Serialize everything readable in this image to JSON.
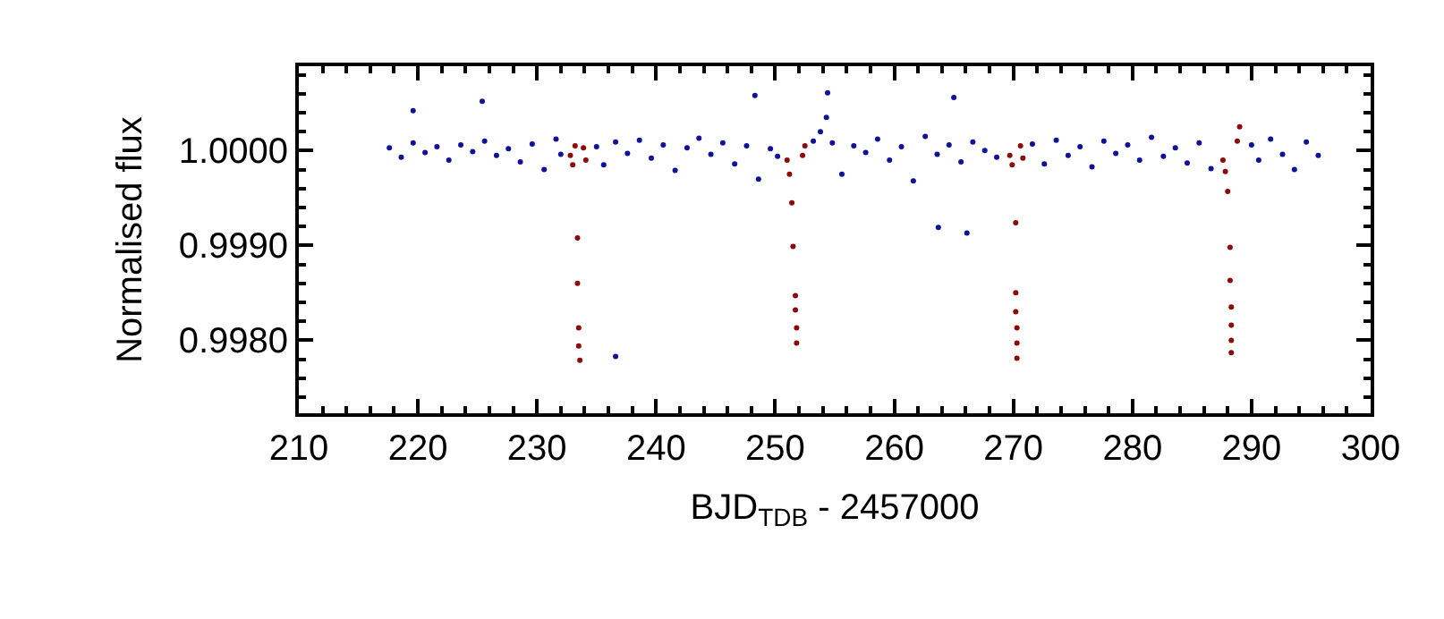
{
  "chart_data": {
    "type": "scatter",
    "xlabel": "BJD$_{TDB}$ - 2457000",
    "ylabel": "Normalised flux",
    "xlim": [
      210,
      300
    ],
    "xticks": [
      210,
      220,
      230,
      240,
      250,
      260,
      270,
      280,
      290,
      300
    ],
    "ylim": [
      0.99723,
      1.00089
    ],
    "yticks": [
      {
        "value": 1.0,
        "label": "1.0000"
      },
      {
        "value": 0.999,
        "label": "0.9990"
      },
      {
        "value": 0.998,
        "label": "0.9980"
      }
    ],
    "marker": "circle",
    "series": [
      {
        "color": "#10109a",
        "x": [
          217.6,
          218.6,
          219.6,
          220.6,
          221.6,
          222.6,
          223.6,
          224.6,
          225.6,
          226.6,
          227.6,
          228.6,
          229.6,
          230.6,
          231.6,
          232.0,
          235.0,
          235.6,
          236.6,
          237.6,
          238.6,
          239.6,
          240.6,
          241.6,
          242.6,
          243.6,
          244.6,
          245.6,
          246.6,
          247.6,
          248.6,
          249.6,
          250.2,
          253.2,
          253.8,
          254.3,
          254.8,
          255.6,
          256.6,
          257.6,
          258.6,
          259.6,
          260.6,
          261.6,
          262.6,
          263.6,
          264.6,
          265.6,
          266.6,
          267.6,
          268.6,
          271.6,
          272.6,
          273.6,
          274.6,
          275.6,
          276.6,
          277.6,
          278.6,
          279.6,
          280.6,
          281.6,
          282.6,
          283.6,
          284.6,
          285.6,
          286.6,
          290.0,
          290.6,
          291.6,
          292.6,
          293.6,
          294.6,
          295.6,
          219.6,
          225.4,
          236.6,
          248.3,
          254.4,
          263.7,
          265.0,
          266.1
        ],
        "values": [
          1.00003,
          0.99993,
          1.00008,
          0.99998,
          1.00004,
          0.9999,
          1.00006,
          0.99999,
          1.0001,
          0.99995,
          1.00002,
          0.99988,
          1.00007,
          0.9998,
          1.00012,
          0.99996,
          1.00004,
          0.99985,
          1.00009,
          0.99997,
          1.00011,
          0.99992,
          1.00006,
          0.99979,
          1.00003,
          1.00013,
          0.99996,
          1.00008,
          0.99986,
          1.00005,
          0.9997,
          1.00002,
          0.99994,
          1.0001,
          1.0002,
          1.00035,
          1.00008,
          0.99975,
          1.00005,
          0.99998,
          1.00012,
          0.9999,
          1.00004,
          0.99968,
          1.00015,
          0.99996,
          1.00006,
          0.99988,
          1.00009,
          1.0,
          0.99993,
          1.00007,
          0.99986,
          1.00011,
          0.99995,
          1.00004,
          0.99983,
          1.0001,
          0.99997,
          1.00006,
          0.9999,
          1.00014,
          0.99994,
          1.00003,
          0.99987,
          1.00008,
          0.99981,
          1.00006,
          0.9999,
          1.00012,
          0.99996,
          0.9998,
          1.00009,
          0.99995,
          1.00042,
          1.00052,
          0.99783,
          1.00058,
          1.00061,
          0.99919,
          1.00056,
          0.99913
        ]
      },
      {
        "color": "#8b0a0a",
        "x": [
          232.8,
          233.0,
          233.2,
          233.4,
          233.4,
          233.5,
          233.5,
          233.6,
          233.9,
          234.1,
          251.0,
          251.2,
          251.4,
          251.5,
          251.7,
          251.7,
          251.8,
          251.8,
          252.3,
          252.5,
          269.7,
          269.9,
          270.2,
          270.2,
          270.2,
          270.3,
          270.3,
          270.3,
          270.6,
          270.8,
          287.6,
          287.8,
          288.0,
          288.2,
          288.2,
          288.3,
          288.3,
          288.3,
          288.3,
          288.8,
          289.0
        ],
        "values": [
          0.99995,
          0.99985,
          1.00005,
          0.99908,
          0.9986,
          0.99813,
          0.99794,
          0.99779,
          1.00003,
          0.9999,
          0.9999,
          0.99975,
          0.99945,
          0.99899,
          0.99847,
          0.99832,
          0.99813,
          0.99797,
          0.99995,
          1.00005,
          0.99995,
          0.99985,
          0.99924,
          0.9985,
          0.9983,
          0.99813,
          0.99797,
          0.99781,
          1.00005,
          0.99992,
          0.9999,
          0.99978,
          0.99957,
          0.99898,
          0.99863,
          0.99835,
          0.99816,
          0.998,
          0.99787,
          1.0001,
          1.00025
        ]
      }
    ]
  }
}
